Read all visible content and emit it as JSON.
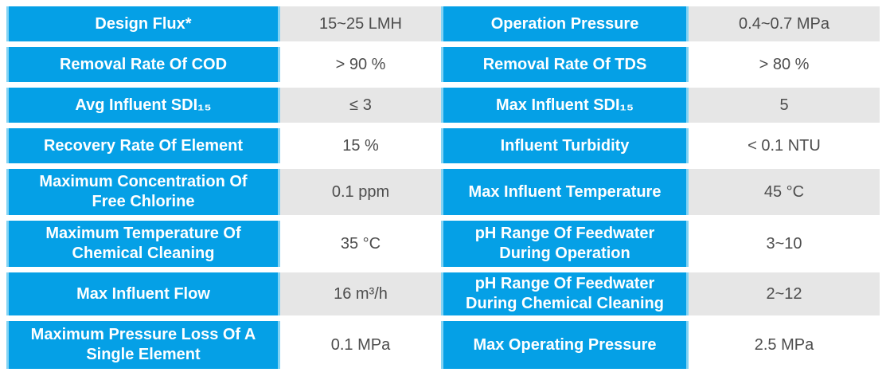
{
  "colors": {
    "label_bg": "#05a0e6",
    "label_edge": "#82d3f4",
    "label_text": "#ffffff",
    "value_bg_odd": "#e6e6e6",
    "value_bg_even": "#ffffff",
    "value_text": "#4d4d4d"
  },
  "table": {
    "rows": [
      {
        "left": {
          "lines": [
            "Design Flux*"
          ],
          "value": "15~25 LMH"
        },
        "right": {
          "lines": [
            "Operation Pressure"
          ],
          "value": "0.4~0.7 MPa"
        }
      },
      {
        "left": {
          "lines": [
            "Removal Rate Of COD"
          ],
          "value": "> 90 %"
        },
        "right": {
          "lines": [
            "Removal Rate Of TDS"
          ],
          "value": "> 80 %"
        }
      },
      {
        "left": {
          "lines": [
            "Avg Influent SDI₁₅"
          ],
          "value": "≤ 3"
        },
        "right": {
          "lines": [
            "Max Influent SDI₁₅"
          ],
          "value": "5"
        }
      },
      {
        "left": {
          "lines": [
            "Recovery Rate Of Element"
          ],
          "value": "15 %"
        },
        "right": {
          "lines": [
            "Influent Turbidity"
          ],
          "value": "< 0.1 NTU"
        }
      },
      {
        "left": {
          "lines": [
            "Maximum Concentration Of",
            "Free Chlorine"
          ],
          "value": "0.1 ppm"
        },
        "right": {
          "lines": [
            "Max Influent Temperature"
          ],
          "value": "45 °C"
        }
      },
      {
        "left": {
          "lines": [
            "Maximum Temperature Of",
            "Chemical Cleaning"
          ],
          "value": "35 °C"
        },
        "right": {
          "lines": [
            "pH Range Of Feedwater",
            "During Operation"
          ],
          "value": "3~10"
        }
      },
      {
        "left": {
          "lines": [
            "Max Influent Flow"
          ],
          "value": "16 m³/h"
        },
        "right": {
          "lines": [
            "pH Range Of Feedwater",
            "During Chemical Cleaning"
          ],
          "value": "2~12"
        }
      },
      {
        "left": {
          "lines": [
            "Maximum Pressure Loss Of A",
            "Single Element"
          ],
          "value": "0.1 MPa"
        },
        "right": {
          "lines": [
            "Max Operating Pressure"
          ],
          "value": "2.5 MPa"
        }
      }
    ]
  }
}
